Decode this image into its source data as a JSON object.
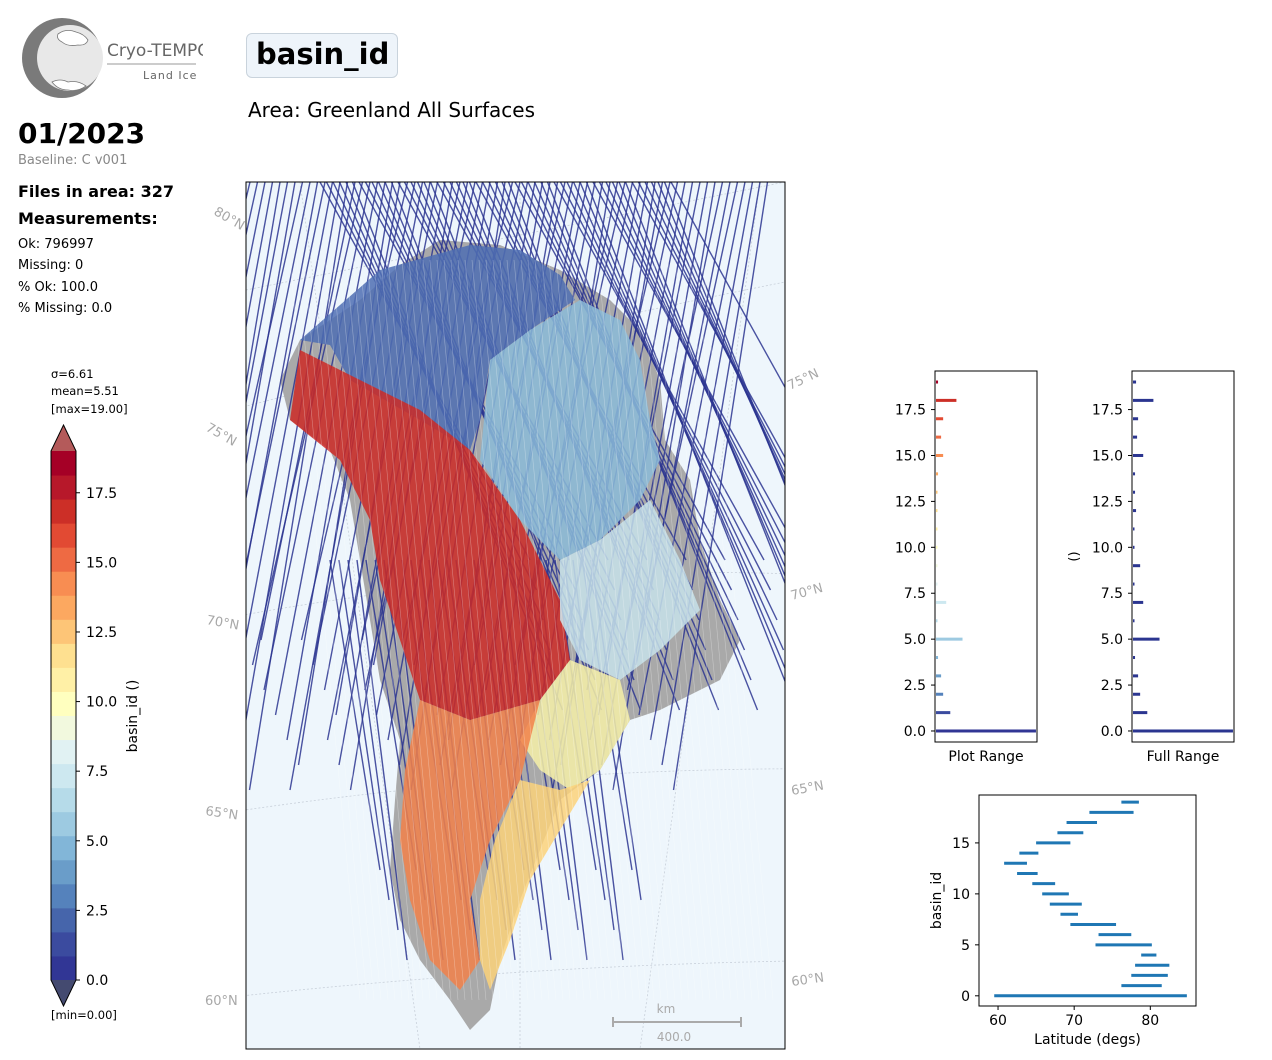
{
  "logo": {
    "name": "Cryo-TEMPO",
    "product": "Land Ice"
  },
  "header": {
    "parameter": "basin_id",
    "area": "Area: Greenland All Surfaces"
  },
  "summary": {
    "period": "01/2023",
    "baseline": "Baseline: C v001",
    "files": "Files in area: 327",
    "measurements_label": "Measurements:",
    "ok": "Ok: 796997",
    "missing": "Missing: 0",
    "pct_ok": "% Ok: 100.0",
    "pct_missing": "% Missing: 0.0"
  },
  "colorbar": {
    "sigma": "σ=6.61",
    "mean": "mean=5.51",
    "max": "[max=19.00]",
    "min": "[min=0.00]",
    "label": "basin_id ()",
    "ticks": [
      "0.0",
      "2.5",
      "5.0",
      "7.5",
      "10.0",
      "12.5",
      "15.0",
      "17.5"
    ],
    "colors": [
      "#313695",
      "#3b4b9f",
      "#4665ab",
      "#5582bc",
      "#6a9dc9",
      "#82b6d8",
      "#9dcae1",
      "#b6dbe9",
      "#cde8f0",
      "#e1f2f3",
      "#f2f9de",
      "#ffffbf",
      "#fff0a6",
      "#fee090",
      "#fdc577",
      "#fca860",
      "#f88d52",
      "#ee6a43",
      "#e24a33",
      "#cc2f27",
      "#b7182a",
      "#a50026"
    ],
    "over_color": "#b45a5a",
    "under_color": "#444a70"
  },
  "map": {
    "lat_labels": [
      "80°N",
      "75°N",
      "70°N",
      "65°N",
      "60°N"
    ],
    "lat_labels_right": [
      "75°N",
      "70°N",
      "65°N",
      "60°N"
    ],
    "scale_unit": "km",
    "scale_value": "400.0",
    "ocean_color": "#eef6fc",
    "track_color": "#2b3590"
  },
  "chart_data": [
    {
      "type": "bar",
      "orientation": "horizontal",
      "title": "",
      "xlabel": "Plot Range",
      "ylabel": "",
      "ylim": [
        -0.6,
        19.6
      ],
      "yticks": [
        "0.0",
        "2.5",
        "5.0",
        "7.5",
        "10.0",
        "12.5",
        "15.0",
        "17.5"
      ],
      "categories": [
        0,
        1,
        2,
        3,
        4,
        5,
        6,
        7,
        8,
        9,
        10,
        11,
        12,
        13,
        14,
        15,
        16,
        17,
        18,
        19
      ],
      "values": [
        0.98,
        0.14,
        0.07,
        0.05,
        0.02,
        0.26,
        0.01,
        0.1,
        0.01,
        0.01,
        0.01,
        0.01,
        0.01,
        0.01,
        0.02,
        0.07,
        0.05,
        0.07,
        0.2,
        0.02
      ],
      "colors": [
        "#313695",
        "#3b4b9f",
        "#5582bc",
        "#6a9dc9",
        "#82b6d8",
        "#9dcae1",
        "#b6dbe9",
        "#cde8f0",
        "#e1f2f3",
        "#f2f9de",
        "#ffffbf",
        "#fff0a6",
        "#fee090",
        "#fdc577",
        "#fca860",
        "#f88d52",
        "#ee6a43",
        "#e24a33",
        "#cc2f27",
        "#a50026"
      ]
    },
    {
      "type": "bar",
      "orientation": "horizontal",
      "title": "",
      "xlabel": "Full Range",
      "ylabel": "()",
      "ylim": [
        -0.6,
        19.6
      ],
      "yticks": [
        "0.0",
        "2.5",
        "5.0",
        "7.5",
        "10.0",
        "12.5",
        "15.0",
        "17.5"
      ],
      "categories": [
        0,
        1,
        2,
        3,
        4,
        5,
        6,
        7,
        8,
        9,
        10,
        11,
        12,
        13,
        14,
        15,
        16,
        17,
        18,
        19
      ],
      "values": [
        0.98,
        0.14,
        0.07,
        0.05,
        0.02,
        0.26,
        0.01,
        0.1,
        0.01,
        0.07,
        0.01,
        0.01,
        0.03,
        0.02,
        0.02,
        0.1,
        0.04,
        0.05,
        0.2,
        0.03
      ],
      "color": "#2b3590"
    },
    {
      "type": "line",
      "title": "",
      "xlabel": "Latitude (degs)",
      "ylabel": "basin_id",
      "xlim": [
        57.5,
        86
      ],
      "ylim": [
        -1,
        19.7
      ],
      "xticks": [
        60,
        70,
        80
      ],
      "yticks": [
        0,
        5,
        10,
        15
      ],
      "color": "#1f77b4",
      "series": [
        {
          "y": 0,
          "x": [
            59.5,
            84.8
          ]
        },
        {
          "y": 1,
          "x": [
            76.2,
            81.5
          ]
        },
        {
          "y": 2,
          "x": [
            77.5,
            82.3
          ]
        },
        {
          "y": 3,
          "x": [
            78.0,
            82.5
          ]
        },
        {
          "y": 4,
          "x": [
            78.8,
            80.8
          ]
        },
        {
          "y": 5,
          "x": [
            72.8,
            80.2
          ]
        },
        {
          "y": 6,
          "x": [
            73.2,
            77.5
          ]
        },
        {
          "y": 7,
          "x": [
            69.5,
            75.5
          ]
        },
        {
          "y": 8,
          "x": [
            68.2,
            70.5
          ]
        },
        {
          "y": 9,
          "x": [
            66.8,
            71.0
          ]
        },
        {
          "y": 10,
          "x": [
            65.8,
            69.3
          ]
        },
        {
          "y": 11,
          "x": [
            64.5,
            67.5
          ]
        },
        {
          "y": 12,
          "x": [
            62.5,
            65.2
          ]
        },
        {
          "y": 13,
          "x": [
            60.8,
            63.8
          ]
        },
        {
          "y": 14,
          "x": [
            62.8,
            65.3
          ]
        },
        {
          "y": 15,
          "x": [
            65.0,
            69.5
          ]
        },
        {
          "y": 16,
          "x": [
            67.8,
            71.2
          ]
        },
        {
          "y": 17,
          "x": [
            69.0,
            73.0
          ]
        },
        {
          "y": 18,
          "x": [
            72.0,
            77.8
          ]
        },
        {
          "y": 19,
          "x": [
            76.2,
            78.5
          ]
        }
      ]
    }
  ]
}
